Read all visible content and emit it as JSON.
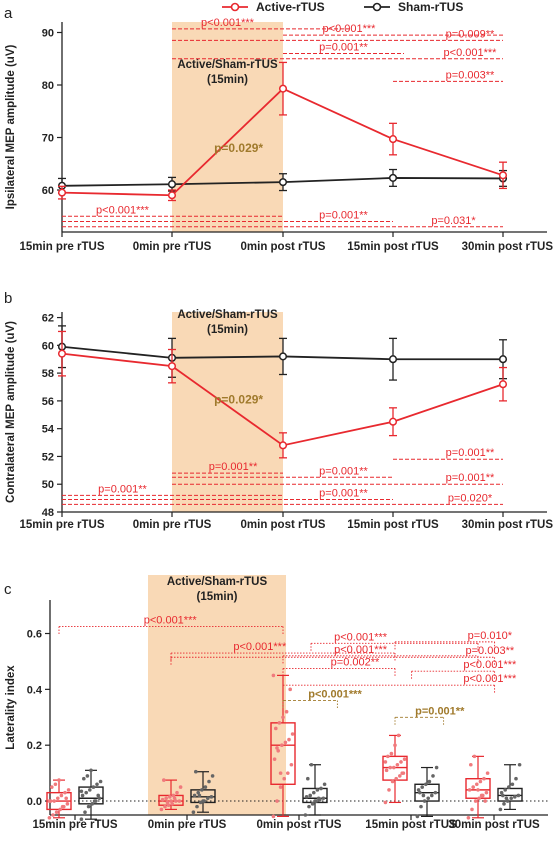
{
  "colors": {
    "active": "#e8292f",
    "sham": "#222222",
    "shade": "#f9d9b6",
    "annot_brown": "#a07a2c"
  },
  "legend": {
    "active": "Active-rTUS",
    "sham": "Sham-rTUS"
  },
  "panel_letters": [
    "a",
    "b",
    "c"
  ],
  "stim_label": [
    "Active/Sham-rTUS",
    "(15min)"
  ],
  "chart_data": [
    {
      "type": "line",
      "panel": "a",
      "ylabel": "Ipsilateral MEP amplitude (uV)",
      "ylim": [
        52,
        92
      ],
      "yticks": [
        60,
        70,
        80,
        90
      ],
      "categories": [
        "15min pre rTUS",
        "0min pre rTUS",
        "0min post rTUS",
        "15min post rTUS",
        "30min post rTUS"
      ],
      "series": [
        {
          "name": "Active-rTUS",
          "values": [
            59.5,
            59.0,
            79.3,
            69.7,
            62.8
          ],
          "err": [
            1.2,
            1.0,
            5.0,
            3.0,
            2.5
          ]
        },
        {
          "name": "Sham-rTUS",
          "values": [
            60.8,
            61.1,
            61.5,
            62.3,
            62.2
          ],
          "err": [
            1.4,
            1.3,
            1.6,
            1.6,
            1.5
          ]
        }
      ],
      "annotations_top": [
        {
          "text": "p<0.001***",
          "from": 1,
          "to": 2.6,
          "y": 90.7,
          "label_at": 1.5
        },
        {
          "text": "p<0.001***",
          "from": 2,
          "to": 4,
          "y": 89.5,
          "label_at": 2.6
        },
        {
          "text": "p=0.009**",
          "from": 1,
          "to": 4,
          "y": 88.5,
          "label_at": 3.7
        },
        {
          "text": "p=0.001**",
          "from": 2,
          "to": 3.1,
          "y": 86.0,
          "label_at": 2.55
        },
        {
          "text": "p<0.001***",
          "from": 1,
          "to": 4,
          "y": 85.0,
          "label_at": 3.7
        },
        {
          "text": "p=0.003**",
          "from": 3,
          "to": 4,
          "y": 80.7,
          "label_at": 3.7
        }
      ],
      "annotations_bottom": [
        {
          "text": "p<0.001***",
          "from": 0,
          "to": 2,
          "y": 55.0,
          "label_at": 0.55
        },
        {
          "text": "p=0.001**",
          "from": 0,
          "to": 3,
          "y": 54.0,
          "label_at": 2.55
        },
        {
          "text": "p=0.031*",
          "from": 0,
          "to": 4,
          "y": 53.0,
          "label_at": 3.55
        }
      ],
      "center_annotation": {
        "text": "p=0.029*",
        "x": 1.6,
        "y": 67.2
      }
    },
    {
      "type": "line",
      "panel": "b",
      "ylabel": "Contralateral MEP amplitude (uV)",
      "ylim": [
        48,
        62.4
      ],
      "yticks": [
        48,
        50,
        52,
        54,
        56,
        58,
        60,
        62
      ],
      "categories": [
        "15min pre rTUS",
        "0min pre rTUS",
        "0min post rTUS",
        "15min post rTUS",
        "30min post rTUS"
      ],
      "series": [
        {
          "name": "Active-rTUS",
          "values": [
            59.4,
            58.5,
            52.8,
            54.5,
            57.2
          ],
          "err": [
            1.6,
            1.2,
            0.9,
            1.0,
            1.2
          ]
        },
        {
          "name": "Sham-rTUS",
          "values": [
            59.9,
            59.1,
            59.2,
            59.0,
            59.0
          ],
          "err": [
            1.5,
            1.4,
            1.3,
            1.5,
            1.4
          ]
        }
      ],
      "annotations_bottom": [
        {
          "text": "p=0.001**",
          "from": 3,
          "to": 4,
          "y": 51.8,
          "label_at": 3.7
        },
        {
          "text": "p=0.001**",
          "from": 1,
          "to": 2,
          "y": 50.8,
          "label_at": 1.55
        },
        {
          "text": "p=0.001**",
          "from": 1,
          "to": 3,
          "y": 50.5,
          "label_at": 2.55
        },
        {
          "text": "p=0.001**",
          "from": 1,
          "to": 4,
          "y": 50.0,
          "label_at": 3.7
        },
        {
          "text": "p=0.001**",
          "from": 0,
          "to": 2,
          "y": 49.2,
          "label_at": 0.55
        },
        {
          "text": "p=0.001**",
          "from": 0,
          "to": 3,
          "y": 48.9,
          "label_at": 2.55
        },
        {
          "text": "p=0.020*",
          "from": 0,
          "to": 4,
          "y": 48.55,
          "label_at": 3.7
        }
      ],
      "center_annotation": {
        "text": "p=0.029*",
        "x": 1.6,
        "y": 55.8
      }
    },
    {
      "type": "box",
      "panel": "c",
      "ylabel": "Laterality index",
      "ylim": [
        -0.05,
        0.72
      ],
      "yticks": [
        0.0,
        0.2,
        0.4,
        0.6
      ],
      "categories": [
        "15min pre rTUS",
        "0min pre rTUS",
        "0min post rTUS",
        "15min post rTUS",
        "30min post rTUS"
      ],
      "series": [
        {
          "name": "Active-rTUS",
          "boxes": [
            {
              "min": -0.06,
              "q1": -0.03,
              "median": 0.0,
              "q3": 0.03,
              "max": 0.075
            },
            {
              "min": -0.03,
              "q1": -0.015,
              "median": 0.0,
              "q3": 0.02,
              "max": 0.075
            },
            {
              "min": -0.055,
              "q1": 0.06,
              "median": 0.2,
              "q3": 0.28,
              "max": 0.45
            },
            {
              "min": -0.005,
              "q1": 0.075,
              "median": 0.12,
              "q3": 0.16,
              "max": 0.235
            },
            {
              "min": -0.06,
              "q1": 0.01,
              "median": 0.04,
              "q3": 0.08,
              "max": 0.16
            }
          ]
        },
        {
          "name": "Sham-rTUS",
          "boxes": [
            {
              "min": -0.065,
              "q1": -0.01,
              "median": 0.01,
              "q3": 0.05,
              "max": 0.11
            },
            {
              "min": -0.04,
              "q1": -0.005,
              "median": 0.015,
              "q3": 0.04,
              "max": 0.105
            },
            {
              "min": -0.05,
              "q1": -0.005,
              "median": 0.01,
              "q3": 0.045,
              "max": 0.13
            },
            {
              "min": -0.055,
              "q1": 0.0,
              "median": 0.03,
              "q3": 0.06,
              "max": 0.12
            },
            {
              "min": -0.03,
              "q1": 0.0,
              "median": 0.02,
              "q3": 0.045,
              "max": 0.13
            }
          ]
        }
      ],
      "points": {
        "active": [
          [
            -0.06,
            -0.05,
            -0.04,
            -0.03,
            -0.02,
            -0.01,
            0.0,
            0.0,
            0.01,
            0.02,
            0.03,
            0.04,
            0.05,
            0.06,
            0.075,
            -0.02,
            0.01,
            0.0
          ],
          [
            -0.03,
            -0.02,
            -0.015,
            -0.01,
            0.0,
            0.0,
            0.005,
            0.01,
            0.015,
            0.02,
            0.03,
            0.05,
            0.075,
            -0.005,
            0.0,
            0.01
          ],
          [
            -0.055,
            0.0,
            0.05,
            0.08,
            0.1,
            0.13,
            0.15,
            0.18,
            0.2,
            0.21,
            0.22,
            0.24,
            0.26,
            0.28,
            0.3,
            0.32,
            0.4,
            0.45,
            0.19,
            0.1
          ],
          [
            -0.005,
            0.04,
            0.07,
            0.08,
            0.09,
            0.1,
            0.11,
            0.12,
            0.12,
            0.13,
            0.14,
            0.15,
            0.16,
            0.17,
            0.2,
            0.235,
            0.1,
            0.14
          ],
          [
            -0.06,
            -0.03,
            0.0,
            0.01,
            0.02,
            0.03,
            0.04,
            0.05,
            0.06,
            0.07,
            0.08,
            0.1,
            0.13,
            0.16,
            0.04,
            0.02,
            0.0
          ]
        ],
        "sham": [
          [
            -0.065,
            -0.04,
            -0.02,
            -0.01,
            0.0,
            0.01,
            0.02,
            0.03,
            0.04,
            0.05,
            0.06,
            0.07,
            0.08,
            0.09,
            0.11,
            0.0,
            0.02,
            0.035
          ],
          [
            -0.04,
            -0.02,
            -0.005,
            0.0,
            0.01,
            0.015,
            0.02,
            0.03,
            0.04,
            0.05,
            0.07,
            0.09,
            0.105,
            0.02,
            0.0
          ],
          [
            -0.05,
            -0.02,
            -0.01,
            0.0,
            0.005,
            0.01,
            0.015,
            0.02,
            0.03,
            0.04,
            0.045,
            0.06,
            0.08,
            0.13,
            0.0,
            0.01
          ],
          [
            -0.055,
            -0.02,
            0.0,
            0.01,
            0.02,
            0.03,
            0.04,
            0.05,
            0.06,
            0.07,
            0.09,
            0.12,
            0.03,
            0.02
          ],
          [
            -0.03,
            -0.01,
            0.0,
            0.01,
            0.015,
            0.02,
            0.03,
            0.04,
            0.05,
            0.06,
            0.08,
            0.13,
            0.02,
            0.01
          ]
        ]
      },
      "annotations": [
        {
          "text": "p<0.001***",
          "from": 0,
          "to": 2,
          "y": 0.625,
          "label_at": 0.85,
          "color": "red"
        },
        {
          "text": "p<0.001***",
          "from": 2.25,
          "to": 4,
          "y": 0.565,
          "label_at": 2.55,
          "color": "red"
        },
        {
          "text": "p=0.010*",
          "from": 3,
          "to": 4.2,
          "y": 0.57,
          "label_at": 3.95,
          "color": "red"
        },
        {
          "text": "p<0.001***",
          "from": 1,
          "to": 3,
          "y": 0.53,
          "label_at": 1.65,
          "color": "red"
        },
        {
          "text": "p<0.001***",
          "from": 2,
          "to": 4,
          "y": 0.52,
          "label_at": 2.55,
          "color": "red"
        },
        {
          "text": "p=0.003**",
          "from": 1,
          "to": 4.2,
          "y": 0.515,
          "label_at": 3.95,
          "color": "red"
        },
        {
          "text": "p=0.002**",
          "from": 2,
          "to": 3,
          "y": 0.475,
          "label_at": 2.5,
          "color": "red"
        },
        {
          "text": "p<0.001***",
          "from": 3.2,
          "to": 4.2,
          "y": 0.465,
          "label_at": 3.95,
          "color": "red"
        },
        {
          "text": "p<0.001***",
          "from": 2,
          "to": 4.2,
          "y": 0.415,
          "label_at": 3.95,
          "color": "red"
        },
        {
          "text": "p<0.001***",
          "from": 2,
          "to": 2.2,
          "y": 0.36,
          "label_at": 2.25,
          "color": "brown"
        },
        {
          "text": "p=0.001**",
          "from": 3,
          "to": 3.2,
          "y": 0.3,
          "label_at": 3.25,
          "color": "brown"
        }
      ]
    }
  ]
}
